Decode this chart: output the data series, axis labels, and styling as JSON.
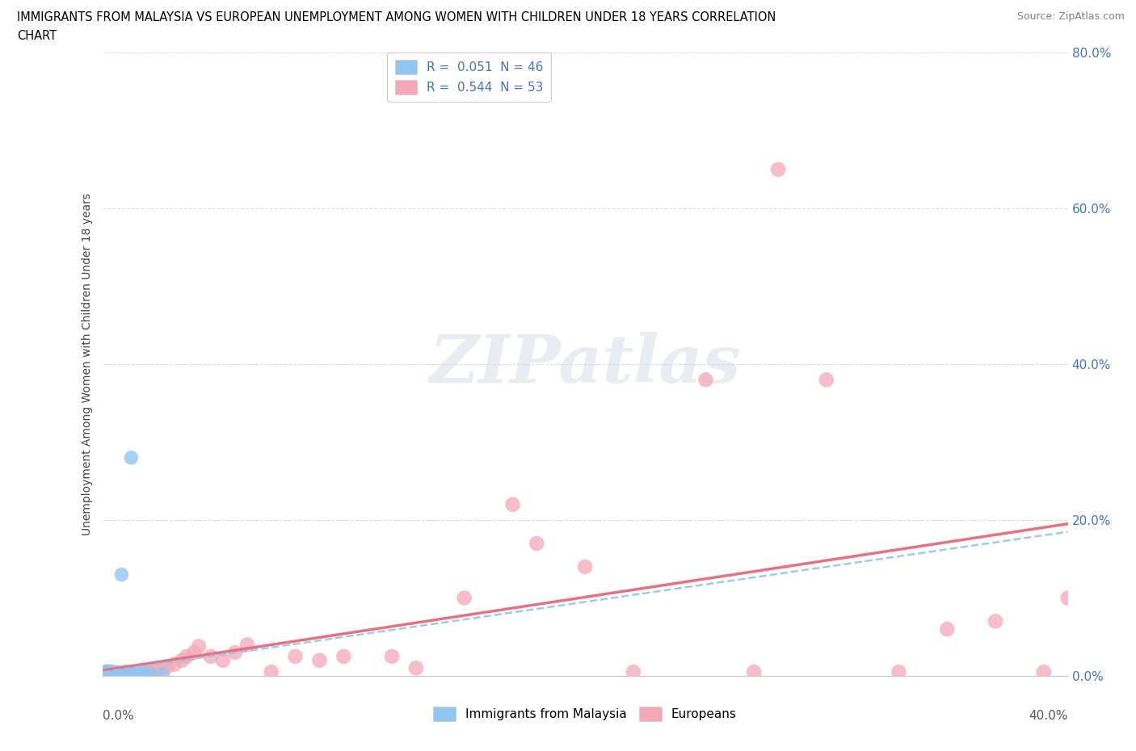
{
  "title_line1": "IMMIGRANTS FROM MALAYSIA VS EUROPEAN UNEMPLOYMENT AMONG WOMEN WITH CHILDREN UNDER 18 YEARS CORRELATION",
  "title_line2": "CHART",
  "source": "Source: ZipAtlas.com",
  "ylabel": "Unemployment Among Women with Children Under 18 years",
  "xlim": [
    0.0,
    0.4
  ],
  "ylim": [
    0.0,
    0.8
  ],
  "yticks": [
    0.0,
    0.2,
    0.4,
    0.6,
    0.8
  ],
  "color_malaysia": "#92C5F0",
  "color_european": "#F5A8B8",
  "trend_color_malaysia": "#92C5F0",
  "trend_color_european": "#E87080",
  "watermark": "ZIPatlas",
  "legend_r1": "R =  0.051  N = 46",
  "legend_r2": "R =  0.544  N = 53",
  "malaysia_x": [
    0.0005,
    0.001,
    0.001,
    0.001,
    0.001,
    0.002,
    0.002,
    0.002,
    0.002,
    0.002,
    0.003,
    0.003,
    0.003,
    0.003,
    0.003,
    0.004,
    0.004,
    0.004,
    0.004,
    0.005,
    0.005,
    0.005,
    0.005,
    0.006,
    0.006,
    0.006,
    0.007,
    0.007,
    0.007,
    0.008,
    0.008,
    0.009,
    0.01,
    0.01,
    0.011,
    0.012,
    0.013,
    0.014,
    0.015,
    0.016,
    0.017,
    0.018,
    0.02,
    0.025,
    0.012,
    0.008
  ],
  "malaysia_y": [
    0.002,
    0.002,
    0.003,
    0.004,
    0.005,
    0.002,
    0.003,
    0.004,
    0.005,
    0.006,
    0.002,
    0.003,
    0.004,
    0.005,
    0.006,
    0.002,
    0.003,
    0.004,
    0.005,
    0.002,
    0.003,
    0.004,
    0.005,
    0.002,
    0.003,
    0.004,
    0.002,
    0.003,
    0.004,
    0.002,
    0.003,
    0.002,
    0.002,
    0.003,
    0.002,
    0.002,
    0.002,
    0.002,
    0.002,
    0.002,
    0.002,
    0.002,
    0.002,
    0.002,
    0.28,
    0.13
  ],
  "european_x": [
    0.0005,
    0.001,
    0.001,
    0.002,
    0.002,
    0.003,
    0.003,
    0.004,
    0.004,
    0.005,
    0.006,
    0.007,
    0.008,
    0.009,
    0.01,
    0.012,
    0.013,
    0.015,
    0.017,
    0.018,
    0.02,
    0.022,
    0.025,
    0.027,
    0.03,
    0.033,
    0.035,
    0.038,
    0.04,
    0.045,
    0.05,
    0.055,
    0.06,
    0.07,
    0.08,
    0.09,
    0.1,
    0.12,
    0.13,
    0.15,
    0.17,
    0.18,
    0.2,
    0.22,
    0.25,
    0.27,
    0.28,
    0.3,
    0.33,
    0.35,
    0.37,
    0.39,
    0.4
  ],
  "european_y": [
    0.002,
    0.003,
    0.004,
    0.003,
    0.004,
    0.003,
    0.004,
    0.003,
    0.004,
    0.003,
    0.004,
    0.003,
    0.004,
    0.004,
    0.005,
    0.004,
    0.005,
    0.005,
    0.005,
    0.006,
    0.007,
    0.008,
    0.01,
    0.012,
    0.015,
    0.02,
    0.025,
    0.03,
    0.038,
    0.025,
    0.02,
    0.03,
    0.04,
    0.005,
    0.025,
    0.02,
    0.025,
    0.025,
    0.01,
    0.1,
    0.22,
    0.17,
    0.14,
    0.005,
    0.38,
    0.005,
    0.65,
    0.38,
    0.005,
    0.06,
    0.07,
    0.005,
    0.1
  ]
}
